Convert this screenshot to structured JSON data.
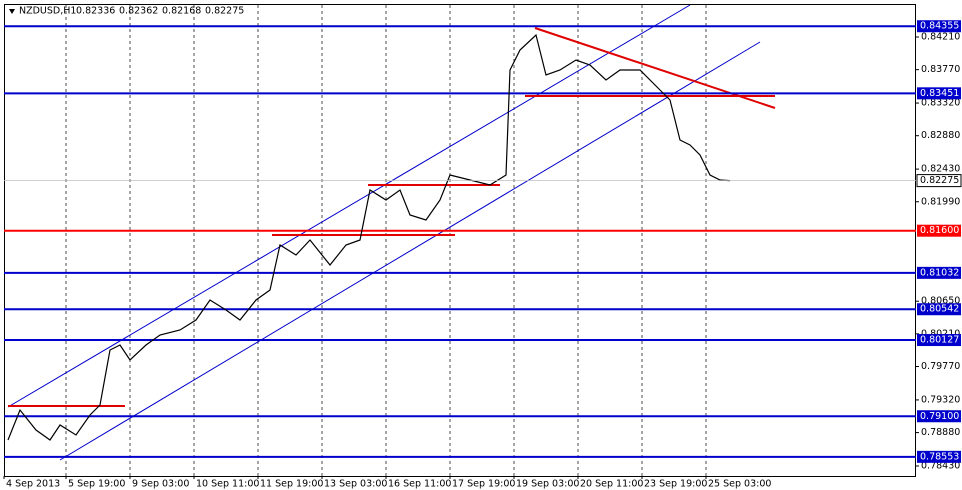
{
  "chart_data": {
    "type": "line",
    "title": "NZDUSD,H1",
    "header_values": [
      0.82336,
      0.82362,
      0.82168,
      0.82275
    ],
    "x": [
      0,
      6,
      14,
      21,
      26,
      34,
      41,
      46,
      51,
      56,
      61,
      69,
      76,
      86,
      94,
      101,
      109,
      116,
      124,
      131,
      136,
      144,
      151,
      161,
      169,
      176,
      181,
      189,
      196,
      201,
      209,
      216,
      221,
      231,
      241,
      249,
      251,
      256,
      264,
      269,
      276,
      284,
      291,
      299,
      306,
      316,
      326,
      331,
      336,
      341,
      346,
      351,
      356,
      361
    ],
    "series": [
      {
        "name": "NZDUSD",
        "color": "#000000",
        "values": [
          0.7878,
          0.79184,
          0.78915,
          0.7878,
          0.78982,
          0.78848,
          0.79117,
          0.79252,
          0.79993,
          0.8006,
          0.79858,
          0.8006,
          0.80195,
          0.80262,
          0.80397,
          0.80666,
          0.80532,
          0.80397,
          0.80666,
          0.80801,
          0.81408,
          0.81273,
          0.81475,
          0.81138,
          0.81408,
          0.81475,
          0.82149,
          0.82014,
          0.82149,
          0.81812,
          0.81744,
          0.82014,
          0.82351,
          0.82283,
          0.82216,
          0.82351,
          0.83765,
          0.84035,
          0.84237,
          0.83698,
          0.83765,
          0.839,
          0.83833,
          0.83631,
          0.83765,
          0.83765,
          0.83496,
          0.83361,
          0.82822,
          0.82755,
          0.8262,
          0.82351,
          0.82283,
          0.82275
        ]
      }
    ],
    "xlim": [
      -2,
      454
    ],
    "ylim": [
      0.78295,
      0.84641
    ],
    "xticks": [
      {
        "value": -2,
        "label": "4 Sep 2013"
      },
      {
        "value": 29,
        "label": "5 Sep 19:00"
      },
      {
        "value": 61,
        "label": "9 Sep 03:00"
      },
      {
        "value": 93,
        "label": "10 Sep 11:00"
      },
      {
        "value": 125,
        "label": "11 Sep 19:00"
      },
      {
        "value": 157,
        "label": "13 Sep 03:00"
      },
      {
        "value": 189,
        "label": "16 Sep 11:00"
      },
      {
        "value": 221,
        "label": "17 Sep 19:00"
      },
      {
        "value": 253,
        "label": "19 Sep 03:00"
      },
      {
        "value": 285,
        "label": "20 Sep 11:00"
      },
      {
        "value": 317,
        "label": "23 Sep 19:00"
      },
      {
        "value": 349,
        "label": "25 Sep 03:00"
      }
    ],
    "yticks": [
      {
        "value": 0.8421,
        "label": "0.84210"
      },
      {
        "value": 0.8377,
        "label": "0.83770"
      },
      {
        "value": 0.8332,
        "label": "0.83320"
      },
      {
        "value": 0.8288,
        "label": "0.82880"
      },
      {
        "value": 0.8243,
        "label": "0.82430"
      },
      {
        "value": 0.8199,
        "label": "0.81990"
      },
      {
        "value": 0.8065,
        "label": "0.80650"
      },
      {
        "value": 0.8021,
        "label": "0.80210"
      },
      {
        "value": 0.7977,
        "label": "0.79770"
      },
      {
        "value": 0.7932,
        "label": "0.79320"
      },
      {
        "value": 0.7888,
        "label": "0.78880"
      },
      {
        "value": 0.7843,
        "label": "0.78430"
      }
    ],
    "levels": [
      {
        "value": 0.84355,
        "color": "#0000cc"
      },
      {
        "value": 0.83451,
        "color": "#0000cc"
      },
      {
        "value": 0.816,
        "label": "0.81600",
        "color": "#ff0000"
      },
      {
        "value": 0.81032,
        "color": "#0000cc"
      },
      {
        "value": 0.80542,
        "color": "#0000cc"
      },
      {
        "value": 0.80127,
        "color": "#0000cc"
      },
      {
        "value": 0.791,
        "label": "0.79100",
        "color": "#0000cc"
      },
      {
        "value": 0.78553,
        "color": "#0000cc"
      }
    ],
    "last_price": 0.82275,
    "grid": true
  }
}
